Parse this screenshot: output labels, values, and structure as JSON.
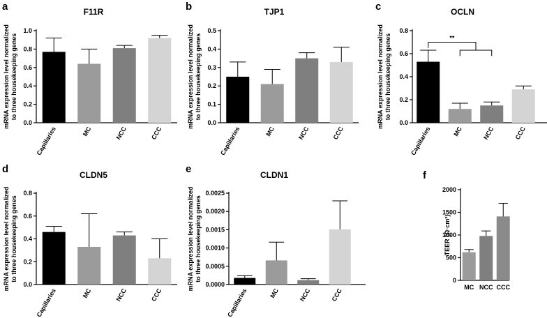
{
  "colors": {
    "black": "#000000",
    "mid_gray": "#9b9b9b",
    "dark_gray": "#7f7f7f",
    "light_gray": "#d4d4d4"
  },
  "chart_data": [
    {
      "id": "a",
      "panel_label": "a",
      "type": "bar",
      "title": "F11R",
      "ylabel": [
        "mRNA expression level normalized",
        "to three housekeeping genes"
      ],
      "categories": [
        "Capillaries",
        "MC",
        "NCC",
        "CCC"
      ],
      "values": [
        0.77,
        0.64,
        0.81,
        0.92
      ],
      "errors": [
        0.15,
        0.16,
        0.03,
        0.03
      ],
      "bar_colors": [
        "#000000",
        "#9b9b9b",
        "#7f7f7f",
        "#d4d4d4"
      ],
      "ylim": [
        0,
        1.0
      ],
      "yticks": [
        "0.0",
        "0.2",
        "0.4",
        "0.6",
        "0.8",
        "1.0"
      ],
      "ytick_values": [
        0,
        0.2,
        0.4,
        0.6,
        0.8,
        1.0
      ]
    },
    {
      "id": "b",
      "panel_label": "b",
      "type": "bar",
      "title": "TJP1",
      "ylabel": [
        "mRNA expression level normalized",
        "to three housekeeping genes"
      ],
      "categories": [
        "Capillaries",
        "MC",
        "NCC",
        "CCC"
      ],
      "values": [
        0.25,
        0.21,
        0.35,
        0.33
      ],
      "errors": [
        0.08,
        0.08,
        0.03,
        0.08
      ],
      "bar_colors": [
        "#000000",
        "#9b9b9b",
        "#7f7f7f",
        "#d4d4d4"
      ],
      "ylim": [
        0,
        0.5
      ],
      "yticks": [
        "0.0",
        "0.1",
        "0.2",
        "0.3",
        "0.4",
        "0.5"
      ],
      "ytick_values": [
        0,
        0.1,
        0.2,
        0.3,
        0.4,
        0.5
      ]
    },
    {
      "id": "c",
      "panel_label": "c",
      "type": "bar",
      "title": "OCLN",
      "ylabel": [
        "mRNA expression level normalized",
        "to three housekeeping genes"
      ],
      "categories": [
        "Capillaries",
        "MC",
        "NCC",
        "CCC"
      ],
      "values": [
        0.53,
        0.12,
        0.15,
        0.29
      ],
      "errors": [
        0.1,
        0.05,
        0.03,
        0.03
      ],
      "bar_colors": [
        "#000000",
        "#9b9b9b",
        "#7f7f7f",
        "#d4d4d4"
      ],
      "ylim": [
        0,
        0.8
      ],
      "yticks": [
        "0.0",
        "0.2",
        "0.4",
        "0.6",
        "0.8"
      ],
      "ytick_values": [
        0,
        0.2,
        0.4,
        0.6,
        0.8
      ],
      "significance": {
        "label": "**",
        "from_category": "Capillaries",
        "to_categories": [
          "MC",
          "NCC"
        ]
      }
    },
    {
      "id": "d",
      "panel_label": "d",
      "type": "bar",
      "title": "CLDN5",
      "ylabel": [
        "mRNA expression level normalized",
        "to three housekeeping genes"
      ],
      "categories": [
        "Capillaries",
        "MC",
        "NCC",
        "CCC"
      ],
      "values": [
        0.46,
        0.33,
        0.43,
        0.23
      ],
      "errors": [
        0.05,
        0.29,
        0.03,
        0.17
      ],
      "bar_colors": [
        "#000000",
        "#9b9b9b",
        "#7f7f7f",
        "#d4d4d4"
      ],
      "ylim": [
        0,
        0.8
      ],
      "yticks": [
        "0.0",
        "0.2",
        "0.4",
        "0.6",
        "0.8"
      ],
      "ytick_values": [
        0,
        0.2,
        0.4,
        0.6,
        0.8
      ]
    },
    {
      "id": "e",
      "panel_label": "e",
      "type": "bar",
      "title": "CLDN1",
      "ylabel": [
        "mRNA expression level normalized",
        "to three housekeeping genes"
      ],
      "categories": [
        "Capillaries",
        "MC",
        "NCC",
        "CCC"
      ],
      "values": [
        0.00018,
        0.00066,
        0.00012,
        0.00151
      ],
      "errors": [
        6e-05,
        0.0005,
        4e-05,
        0.00078
      ],
      "bar_colors": [
        "#000000",
        "#9b9b9b",
        "#7f7f7f",
        "#d4d4d4"
      ],
      "ylim": [
        0,
        0.0025
      ],
      "yticks": [
        "0.0000",
        "0.0005",
        "0.0010",
        "0.0015",
        "0.0020",
        "0.0025"
      ],
      "ytick_values": [
        0,
        0.0005,
        0.001,
        0.0015,
        0.002,
        0.0025
      ]
    },
    {
      "id": "f",
      "panel_label": "f",
      "type": "bar",
      "title": "",
      "ylabel": [
        "TEER (Ω·cm²)"
      ],
      "categories": [
        "MC",
        "NCC",
        "CCC"
      ],
      "values": [
        620,
        980,
        1410
      ],
      "errors": [
        60,
        110,
        290
      ],
      "bar_colors": [
        "#9b9b9b",
        "#7f7f7f",
        "#8a8a8a"
      ],
      "ylim": [
        0,
        2000
      ],
      "yticks": [
        "0",
        "500",
        "1000",
        "1500",
        "2000"
      ],
      "ytick_values": [
        0,
        500,
        1000,
        1500,
        2000
      ]
    }
  ]
}
